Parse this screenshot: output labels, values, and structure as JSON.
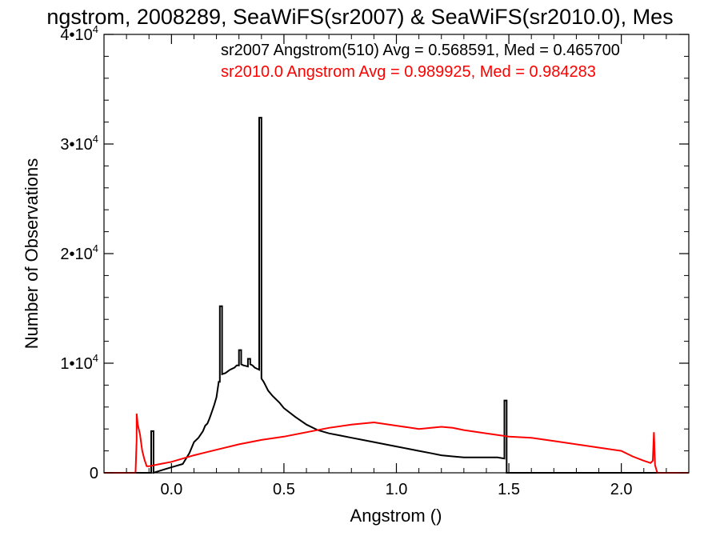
{
  "chart_data": {
    "type": "line",
    "title": "ngstrom, 2008289, SeaWiFS(sr2007) & SeaWiFS(sr2010.0), Mes",
    "xlabel": "Angstrom ()",
    "ylabel": "Number of Observations",
    "xlim": [
      -0.3,
      2.3
    ],
    "ylim": [
      0,
      40000
    ],
    "grid": false,
    "x_ticks": [
      {
        "value": 0.0,
        "label": "0.0"
      },
      {
        "value": 0.5,
        "label": "0.5"
      },
      {
        "value": 1.0,
        "label": "1.0"
      },
      {
        "value": 1.5,
        "label": "1.5"
      },
      {
        "value": 2.0,
        "label": "2.0"
      }
    ],
    "y_ticks": [
      {
        "value": 0,
        "label": "0"
      },
      {
        "value": 10000,
        "label": "1•10",
        "sup": "4"
      },
      {
        "value": 20000,
        "label": "2•10",
        "sup": "4"
      },
      {
        "value": 30000,
        "label": "3•10",
        "sup": "4"
      },
      {
        "value": 40000,
        "label": "4•10",
        "sup": "4"
      }
    ],
    "annotations": [
      {
        "text": "sr2007 Angstrom(510) Avg = 0.568591, Med = 0.465700",
        "color": "#000000"
      },
      {
        "text": "sr2010.0 Angstrom Avg = 0.989925, Med = 0.984283",
        "color": "#ff0000"
      }
    ],
    "series": [
      {
        "color": "#000000",
        "x": [
          -0.3,
          -0.09,
          -0.09,
          -0.08,
          -0.08,
          -0.05,
          0.0,
          0.05,
          0.08,
          0.1,
          0.12,
          0.14,
          0.15,
          0.16,
          0.17,
          0.18,
          0.19,
          0.2,
          0.21,
          0.215,
          0.215,
          0.225,
          0.225,
          0.24,
          0.26,
          0.28,
          0.29,
          0.3,
          0.3,
          0.31,
          0.31,
          0.32,
          0.34,
          0.34,
          0.35,
          0.35,
          0.36,
          0.37,
          0.38,
          0.39,
          0.39,
          0.4,
          0.4,
          0.41,
          0.43,
          0.45,
          0.48,
          0.5,
          0.55,
          0.6,
          0.65,
          0.7,
          0.75,
          0.8,
          0.85,
          0.9,
          0.95,
          1.0,
          1.05,
          1.1,
          1.15,
          1.2,
          1.25,
          1.3,
          1.35,
          1.4,
          1.45,
          1.48,
          1.48,
          1.49,
          1.49,
          2.3
        ],
        "y": [
          0,
          0,
          3800,
          3800,
          0,
          200,
          500,
          800,
          1800,
          2800,
          3200,
          3800,
          4300,
          4500,
          5000,
          5600,
          6200,
          6900,
          8300,
          8300,
          15200,
          15200,
          9000,
          9100,
          9400,
          9600,
          9800,
          9800,
          11200,
          11200,
          9900,
          9800,
          9700,
          10400,
          10400,
          9900,
          9800,
          9600,
          9500,
          9400,
          32400,
          32400,
          8600,
          8300,
          7500,
          7000,
          6400,
          5900,
          5100,
          4400,
          3900,
          3600,
          3400,
          3200,
          3000,
          2800,
          2600,
          2400,
          2200,
          2000,
          1800,
          1600,
          1500,
          1400,
          1400,
          1400,
          1400,
          1300,
          6600,
          6600,
          0,
          0
        ]
      },
      {
        "color": "#ff0000",
        "x": [
          -0.3,
          -0.16,
          -0.155,
          -0.155,
          -0.15,
          -0.14,
          -0.13,
          -0.12,
          -0.11,
          -0.1,
          -0.05,
          0.0,
          0.05,
          0.1,
          0.2,
          0.3,
          0.4,
          0.5,
          0.6,
          0.7,
          0.8,
          0.9,
          1.0,
          1.1,
          1.2,
          1.25,
          1.3,
          1.4,
          1.5,
          1.6,
          1.7,
          1.8,
          1.9,
          2.0,
          2.05,
          2.1,
          2.13,
          2.14,
          2.145,
          2.15,
          2.16,
          2.3
        ],
        "y": [
          0,
          0,
          3000,
          5400,
          4400,
          3500,
          2000,
          1200,
          600,
          600,
          800,
          1000,
          1300,
          1600,
          2100,
          2600,
          3000,
          3300,
          3700,
          4100,
          4400,
          4600,
          4300,
          4000,
          4200,
          4100,
          3900,
          3600,
          3300,
          3200,
          2900,
          2600,
          2300,
          2000,
          1500,
          1100,
          900,
          1100,
          3700,
          700,
          0,
          0
        ]
      }
    ]
  }
}
